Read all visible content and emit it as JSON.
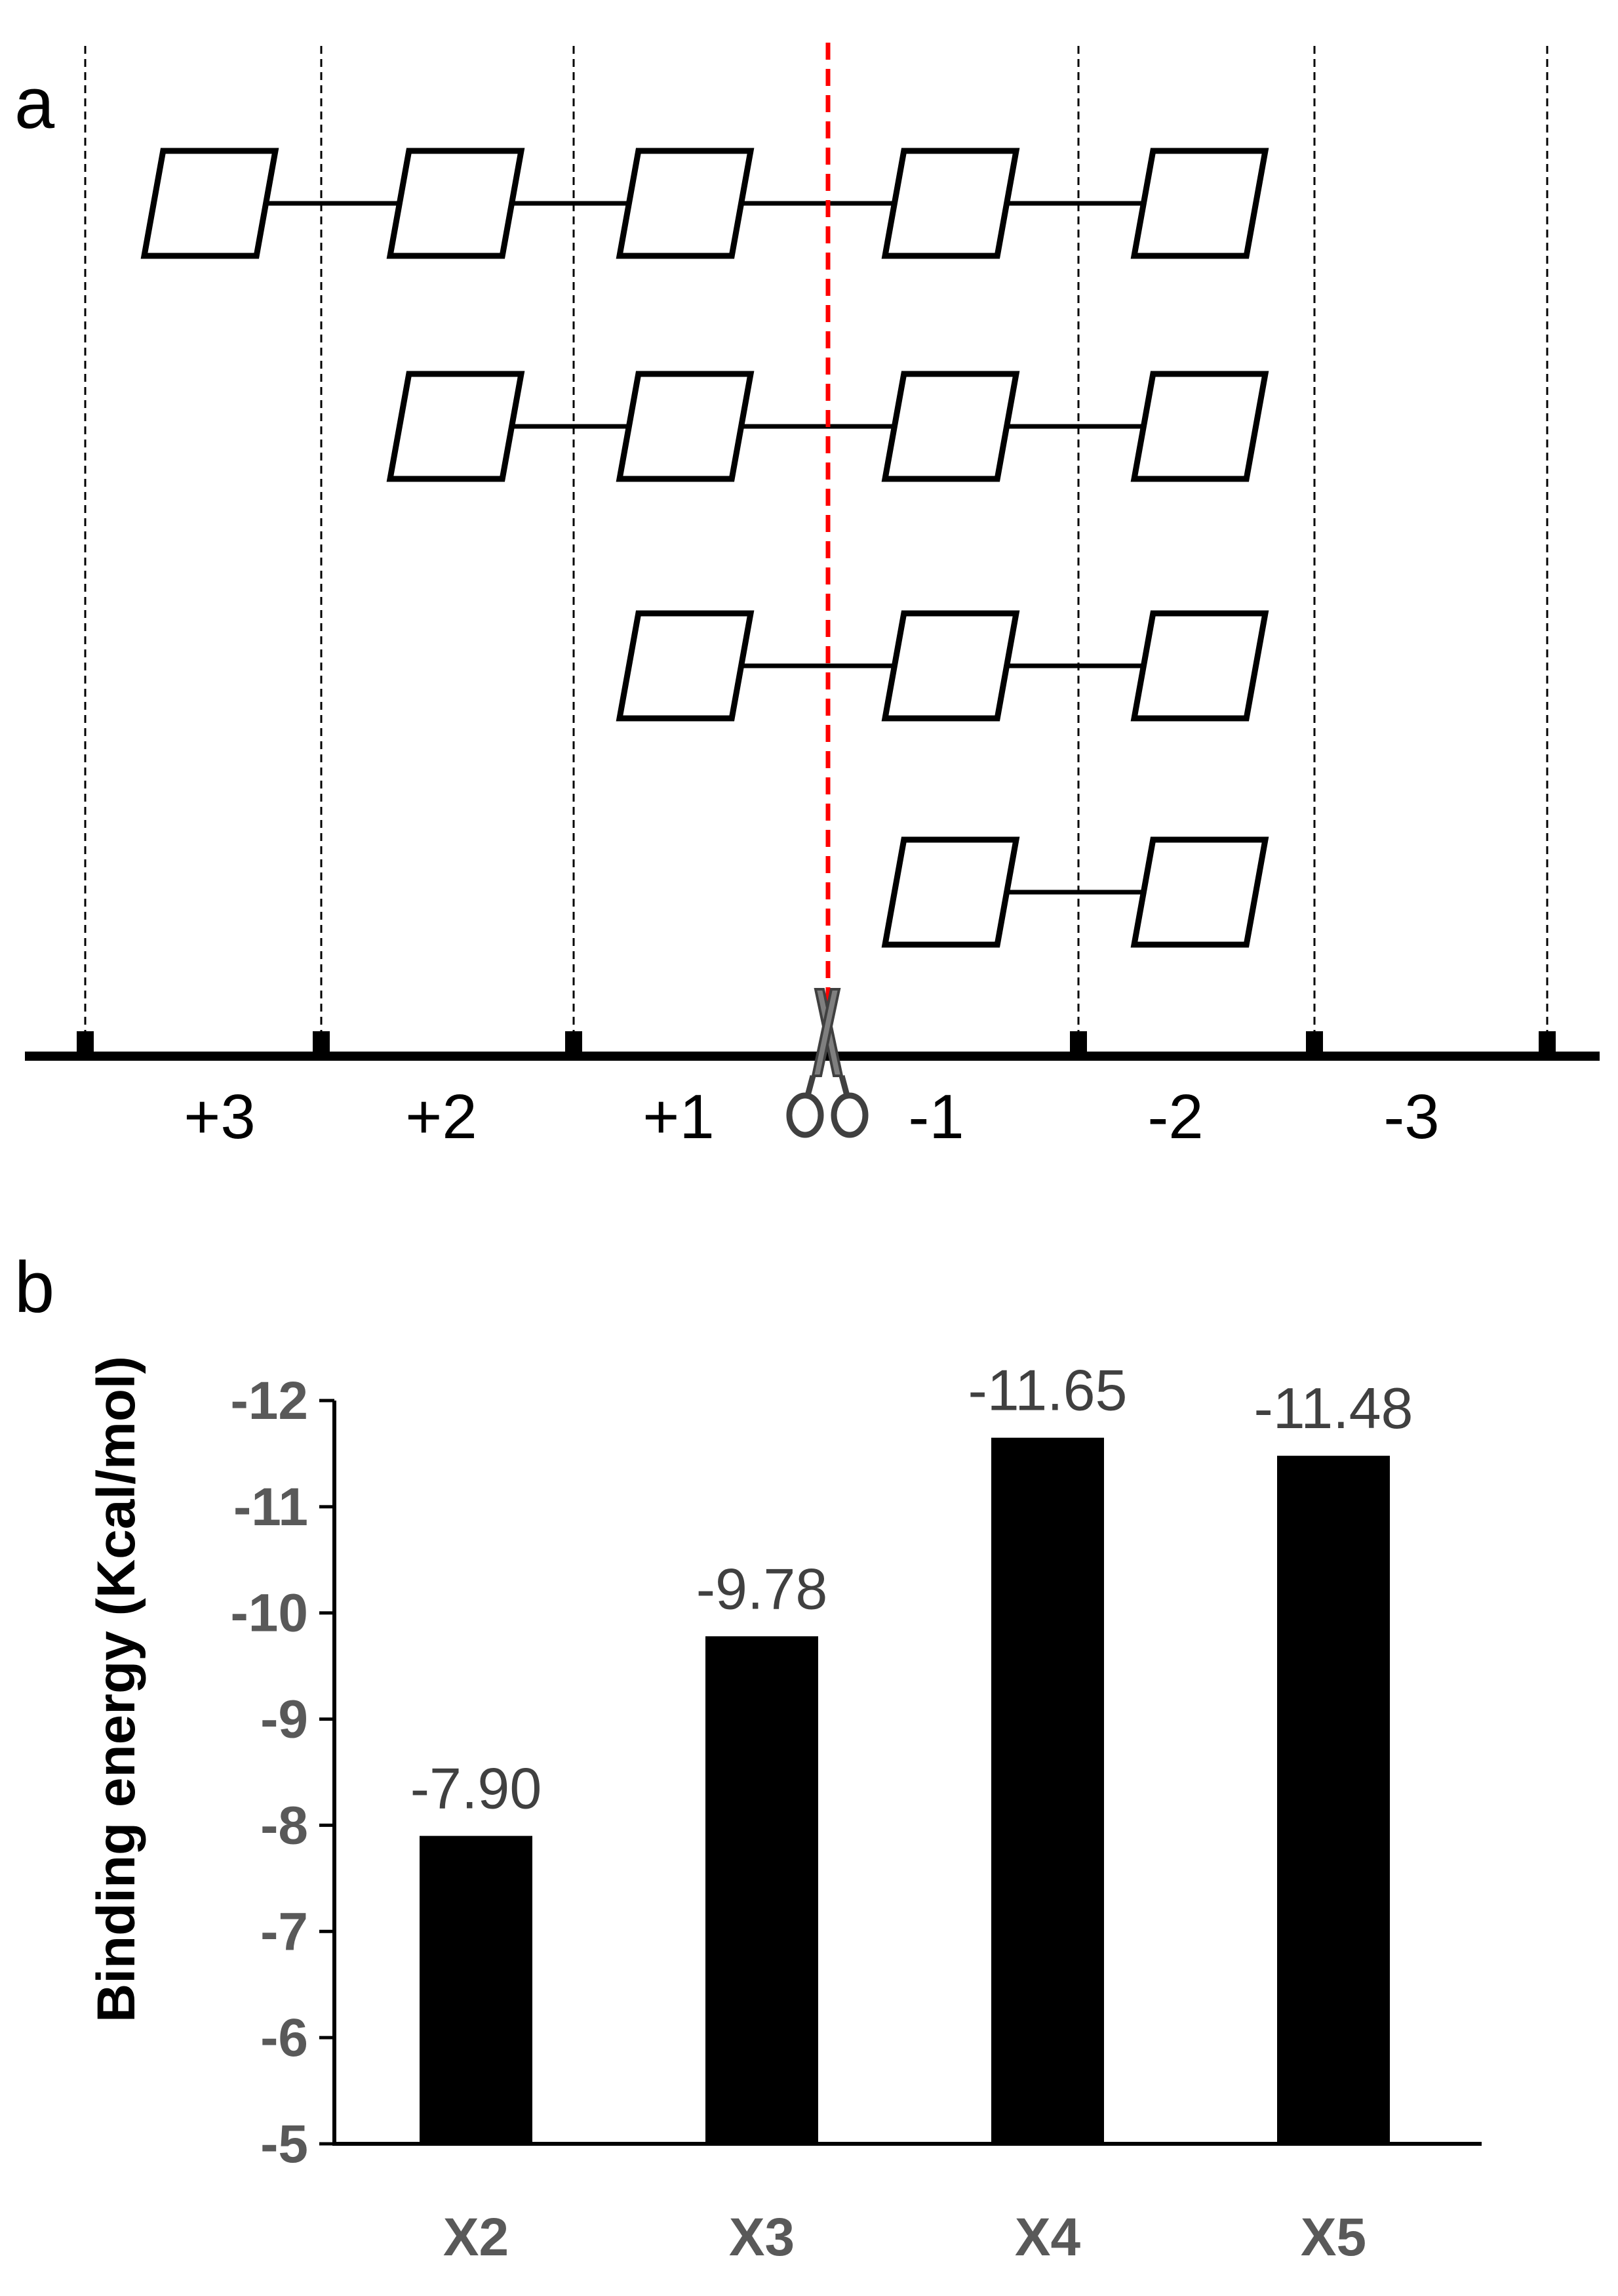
{
  "panel_a": {
    "letter": "a",
    "positions": [
      "+3",
      "+2",
      "+1",
      "-1",
      "-2",
      "-3"
    ],
    "oligomer_rows": [
      5,
      4,
      3,
      2
    ],
    "icons": {
      "cleavage": "scissors-icon"
    },
    "colors": {
      "cleavage_line": "#ff0000"
    }
  },
  "panel_b": {
    "letter": "b"
  },
  "chart_data": {
    "type": "bar",
    "categories": [
      "X2",
      "X3",
      "X4",
      "X5"
    ],
    "values": [
      -7.9,
      -9.78,
      -11.65,
      -11.48
    ],
    "value_labels": [
      "-7.90",
      "-9.78",
      "-11.65",
      "-11.48"
    ],
    "title": "",
    "xlabel": "",
    "ylabel": "Binding energy (Kcal/mol)",
    "ylim": [
      -5,
      -12
    ],
    "yticks": [
      "-12",
      "-11",
      "-10",
      "-9",
      "-8",
      "-7",
      "-6",
      "-5"
    ],
    "axis_inverted": true,
    "grid": false,
    "bar_color": "#000000"
  }
}
